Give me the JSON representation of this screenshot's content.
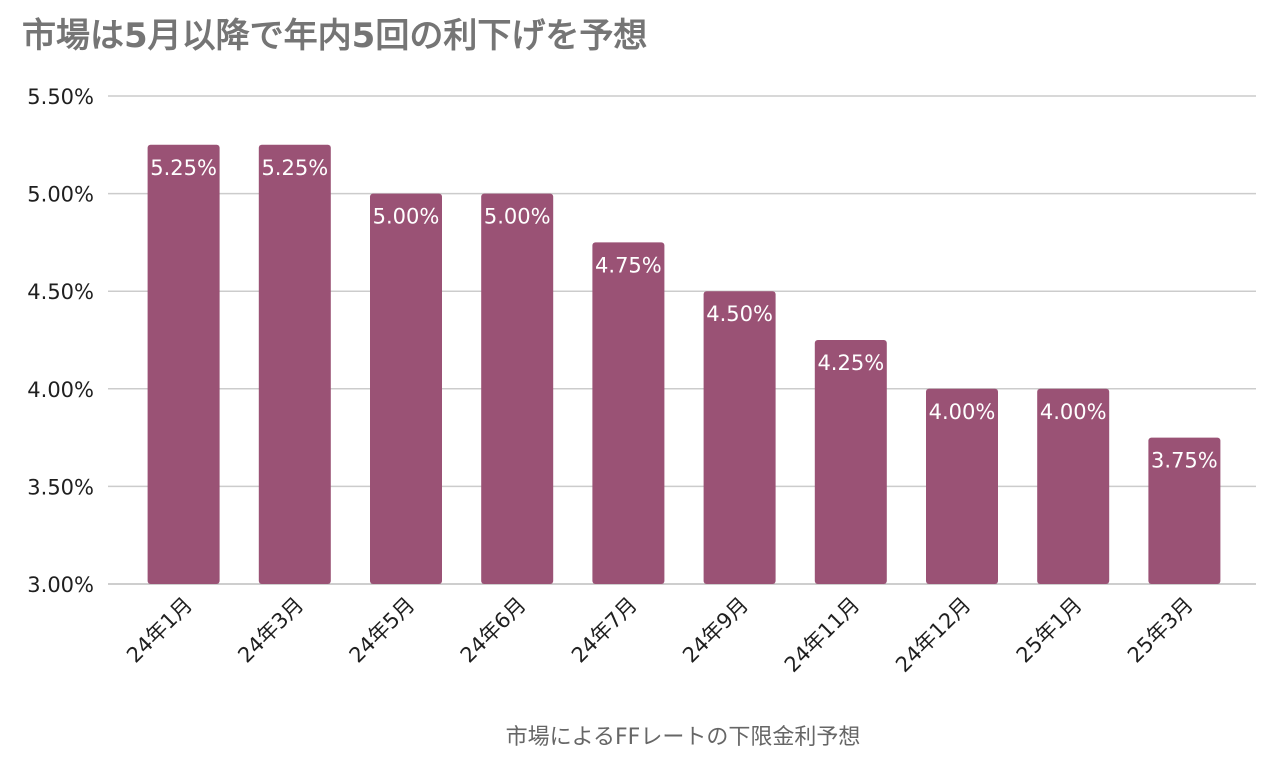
{
  "chart_data": {
    "type": "bar",
    "title": "市場は5月以降で年内5回の利下げを予想",
    "xlabel": "市場によるFFレートの下限金利予想",
    "ylabel": "",
    "categories": [
      "24年1月",
      "24年3月",
      "24年5月",
      "24年6月",
      "24年7月",
      "24年9月",
      "24年11月",
      "24年12月",
      "25年1月",
      "25年3月"
    ],
    "values": [
      5.25,
      5.25,
      5.0,
      5.0,
      4.75,
      4.5,
      4.25,
      4.0,
      4.0,
      3.75
    ],
    "data_labels": [
      "5.25%",
      "5.25%",
      "5.00%",
      "5.00%",
      "4.75%",
      "4.50%",
      "4.25%",
      "4.00%",
      "4.00%",
      "3.75%"
    ],
    "ylim": [
      3.0,
      5.5
    ],
    "yticks": [
      "3.00%",
      "3.50%",
      "4.00%",
      "4.50%",
      "5.00%",
      "5.50%"
    ],
    "ytick_values": [
      3.0,
      3.5,
      4.0,
      4.5,
      5.0,
      5.5
    ],
    "grid": true,
    "legend": "none",
    "bar_color": "#9a5275"
  }
}
